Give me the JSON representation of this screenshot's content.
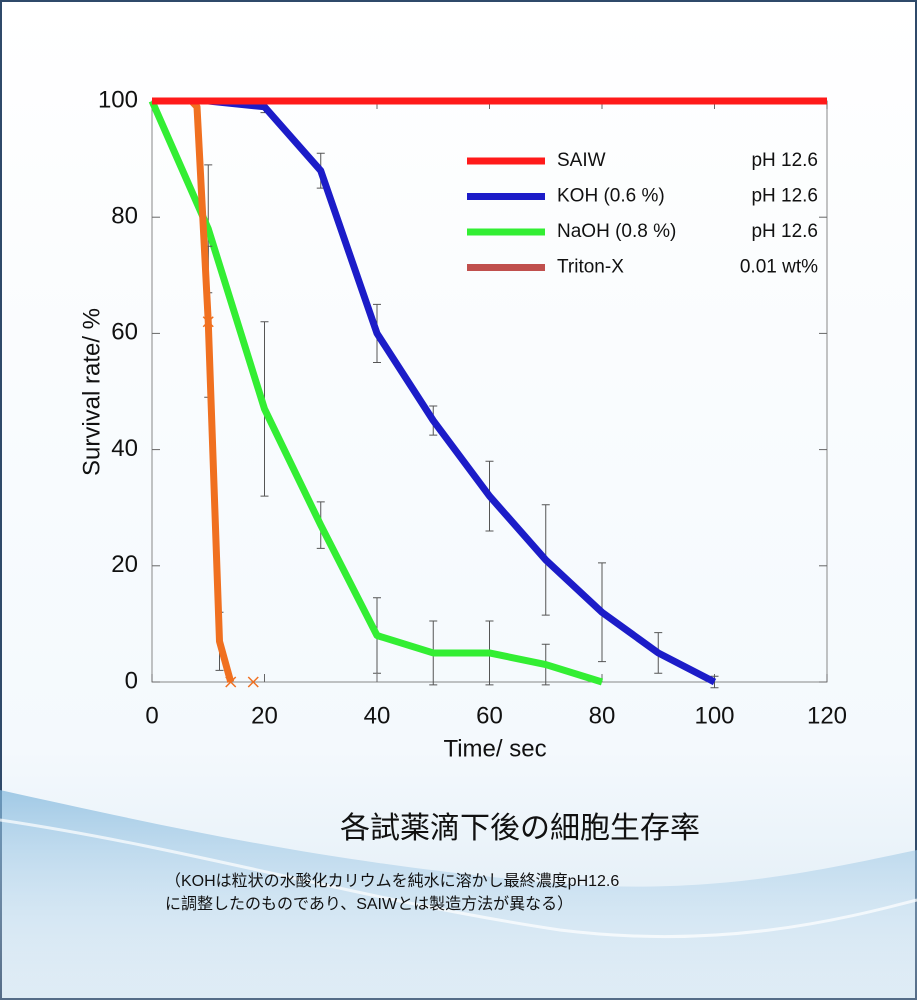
{
  "chart_data": {
    "type": "line",
    "title": "各試薬滴下後の細胞生存率",
    "note_lines": [
      "（KOHは粒状の水酸化カリウムを純水に溶かし最終濃度pH12.6",
      "に調整したのものであり、SAIWとは製造方法が異なる）"
    ],
    "x_label": "Time/ sec",
    "y_label": "Survival rate/ %",
    "xlim": [
      0,
      120
    ],
    "xticks": [
      0,
      20,
      40,
      60,
      80,
      100,
      120
    ],
    "ylim": [
      0,
      100
    ],
    "yticks": [
      0,
      20,
      40,
      60,
      80,
      100
    ],
    "series": [
      {
        "name": "SAIW",
        "note": "pH 12.6",
        "color": "#ff1a1a",
        "x": [
          0,
          120
        ],
        "values": [
          100,
          100
        ],
        "errors": [
          null,
          null
        ]
      },
      {
        "name": "KOH (0.6 %)",
        "note": "pH 12.6",
        "color": "#1c1cc8",
        "x": [
          0,
          10,
          20,
          30,
          40,
          50,
          60,
          70,
          80,
          90,
          100
        ],
        "values": [
          100,
          100,
          99,
          88,
          60,
          45,
          32,
          21,
          12,
          5,
          0
        ],
        "errors": [
          null,
          null,
          1,
          3,
          5,
          2.5,
          6,
          9.5,
          8.5,
          3.5,
          1
        ]
      },
      {
        "name": "NaOH (0.8 %)",
        "note": "pH 12.6",
        "color": "#33ee33",
        "x": [
          0,
          10,
          20,
          30,
          40,
          50,
          60,
          70,
          80
        ],
        "values": [
          100,
          78,
          47,
          27,
          8,
          5,
          5,
          3,
          0
        ],
        "errors": [
          null,
          11,
          15,
          4,
          6.5,
          5.5,
          5.5,
          3.5,
          null
        ]
      },
      {
        "name": "Triton-X",
        "note": "0.01 wt%",
        "color": "#f07020",
        "legend_color": "#c0504d",
        "x": [
          0,
          7,
          8,
          10,
          12,
          14
        ],
        "values": [
          100,
          100,
          99,
          62,
          7,
          0
        ],
        "errors": [
          null,
          null,
          null,
          13,
          5,
          null
        ],
        "marker_x": [
          10,
          14,
          18
        ],
        "marker_values": [
          62,
          0,
          0
        ]
      }
    ]
  }
}
